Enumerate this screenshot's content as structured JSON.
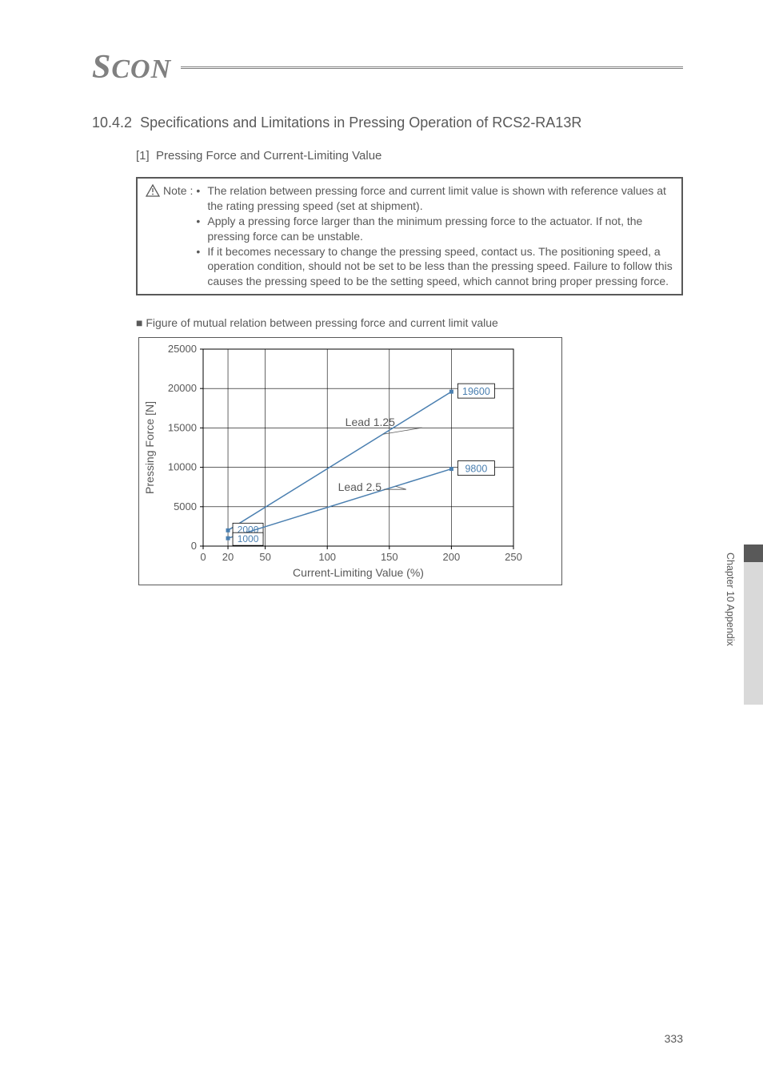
{
  "logo": "SCON",
  "section": {
    "number": "10.4.2",
    "title": "Specifications and Limitations in Pressing Operation of RCS2-RA13R"
  },
  "subsection": {
    "number": "[1]",
    "title": "Pressing Force and Current-Limiting Value"
  },
  "note": {
    "label": "Note :",
    "bullets": [
      "The relation between pressing force and current limit value is shown with reference values at the rating pressing speed (set at shipment).",
      "Apply a pressing force larger than the minimum pressing force to the actuator. If not, the pressing force can be unstable.",
      "If it becomes necessary to change the pressing speed, contact us. The positioning speed, a operation condition, should not be set to be less than the pressing speed. Failure to follow this causes the pressing speed to be the setting speed, which cannot bring proper pressing force."
    ]
  },
  "figure_caption_prefix": "■",
  "figure_caption": "Figure of mutual relation between pressing force and current limit value",
  "chart": {
    "type": "line",
    "ylabel": "Pressing Force [N]",
    "xlabel": "Current-Limiting Value (%)",
    "ylim": [
      0,
      25000
    ],
    "ytick_step": 5000,
    "yticks": [
      "0",
      "5000",
      "10000",
      "15000",
      "20000",
      "25000"
    ],
    "xlim": [
      0,
      250
    ],
    "xticks": [
      "0",
      "20",
      "50",
      "100",
      "150",
      "200",
      "250"
    ],
    "xtick_vals": [
      0,
      20,
      50,
      100,
      150,
      200,
      250
    ],
    "series": [
      {
        "label": "Lead 1.25",
        "color": "#4a7fb0",
        "points": [
          [
            20,
            2000
          ],
          [
            200,
            19600
          ]
        ],
        "end_label": "19600",
        "start_label": "2000"
      },
      {
        "label": "Lead 2.5",
        "color": "#4a7fb0",
        "points": [
          [
            20,
            1000
          ],
          [
            200,
            9800
          ]
        ],
        "end_label": "9800",
        "start_label": "1000"
      }
    ],
    "background_color": "#ffffff",
    "grid_color": "#000000",
    "axis_color": "#000000",
    "text_color": "#595959",
    "label_fontsize": 14,
    "tick_fontsize": 13,
    "datalabel_box_border": "#000000",
    "datalabel_box_bg": "#ffffff",
    "line_width": 1.5,
    "marker_size": 5
  },
  "side_label": "Chapter 10 Appendix",
  "page_number": "333"
}
